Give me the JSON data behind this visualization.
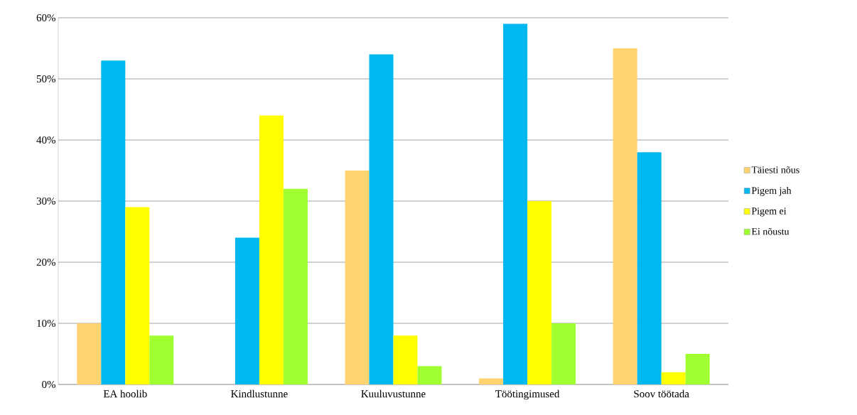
{
  "chart_data": {
    "type": "bar",
    "categories": [
      "EA hoolib",
      "Kindlustunne",
      "Kuuluvustunne",
      "Töötingimused",
      "Soov töötada"
    ],
    "series": [
      {
        "name": "Täiesti nõus",
        "color": "#ffd470",
        "values": [
          10,
          0,
          35,
          1,
          55
        ]
      },
      {
        "name": "Pigem jah",
        "color": "#00b8f0",
        "values": [
          53,
          24,
          54,
          59,
          38
        ]
      },
      {
        "name": "Pigem ei",
        "color": "#ffff00",
        "values": [
          29,
          44,
          8,
          30,
          2
        ]
      },
      {
        "name": "Ei nõustu",
        "color": "#a0ff30",
        "values": [
          8,
          32,
          3,
          10,
          5
        ]
      }
    ],
    "ylim": [
      0,
      60
    ],
    "yticks": [
      {
        "value": 0,
        "label": "0%"
      },
      {
        "value": 10,
        "label": "10%"
      },
      {
        "value": 20,
        "label": "20%"
      },
      {
        "value": 30,
        "label": "30%"
      },
      {
        "value": 40,
        "label": "40%"
      },
      {
        "value": 50,
        "label": "50%"
      },
      {
        "value": 60,
        "label": "60%"
      }
    ],
    "grid": "y",
    "legend": "right"
  }
}
